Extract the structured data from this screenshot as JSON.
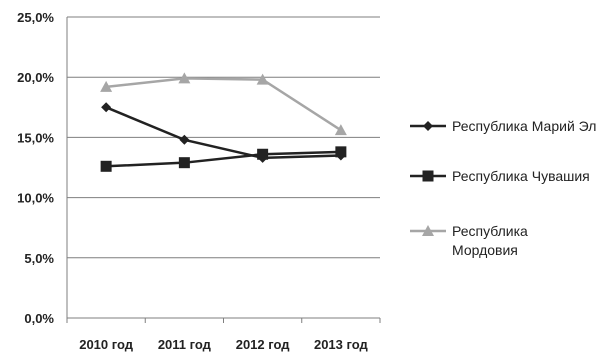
{
  "chart_data": {
    "type": "line",
    "title": "",
    "xlabel": "",
    "ylabel": "",
    "categories": [
      "2010 год",
      "2011 год",
      "2012 год",
      "2013 год"
    ],
    "ylim": [
      0,
      25
    ],
    "yticks": [
      0,
      5,
      10,
      15,
      20,
      25
    ],
    "ytick_labels": [
      "0,0%",
      "5,0%",
      "10,0%",
      "15,0%",
      "20,0%",
      "25,0%"
    ],
    "grid": true,
    "legend_position": "right",
    "series": [
      {
        "name": "Республика Марий Эл",
        "values": [
          17.5,
          14.8,
          13.3,
          13.5
        ],
        "color": "#222222",
        "marker": "diamond"
      },
      {
        "name": "Республика Чувашия",
        "values": [
          12.6,
          12.9,
          13.6,
          13.8
        ],
        "color": "#222222",
        "marker": "square"
      },
      {
        "name": "Республика Мордовия",
        "name_lines": [
          "Республика",
          "Мордовия"
        ],
        "values": [
          19.2,
          19.9,
          19.8,
          15.6
        ],
        "color": "#a6a6a6",
        "marker": "triangle"
      }
    ]
  }
}
